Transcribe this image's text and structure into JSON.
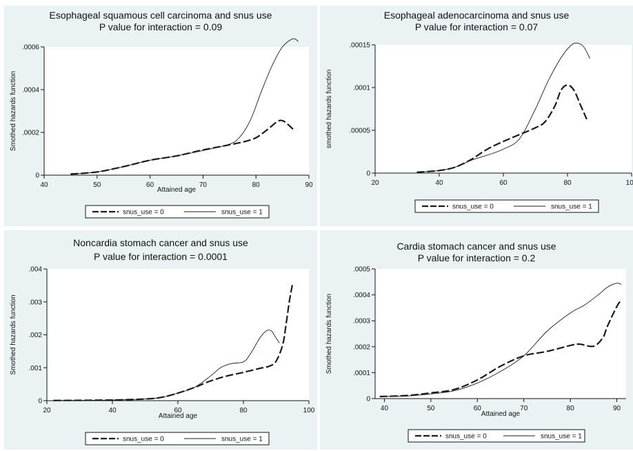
{
  "chart_data": [
    {
      "type": "line",
      "title": "Esophageal squamous cell carcinoma and snus use",
      "subtitle": "P value for interaction = 0.09",
      "xlabel": "Attained age",
      "ylabel": "Smothed hazards function",
      "xlim": [
        40,
        90
      ],
      "ylim": [
        0,
        0.0006
      ],
      "xticks": [
        40,
        50,
        60,
        70,
        80,
        90
      ],
      "xtick_labels": [
        "40",
        "50",
        "60",
        "70",
        "80",
        "90"
      ],
      "yticks": [
        0,
        0.0002,
        0.0004,
        0.0006
      ],
      "ytick_labels": [
        "0",
        ".0002",
        ".0004",
        ".0006"
      ],
      "legend_position": "bottom",
      "series": [
        {
          "name": "snus_use = 0",
          "style": "dashed",
          "x": [
            45,
            50,
            55,
            60,
            65,
            70,
            75,
            78,
            80,
            82,
            84,
            85,
            86,
            87
          ],
          "y": [
            5e-06,
            1.5e-05,
            4e-05,
            7e-05,
            9e-05,
            0.000118,
            0.000142,
            0.000158,
            0.000175,
            0.00021,
            0.00025,
            0.000255,
            0.000238,
            0.000215
          ]
        },
        {
          "name": "snus_use = 1",
          "style": "solid",
          "x": [
            45,
            50,
            55,
            60,
            65,
            70,
            75,
            77,
            79,
            81,
            83,
            85,
            87,
            88
          ],
          "y": [
            5e-06,
            1.5e-05,
            4e-05,
            7e-05,
            9e-05,
            0.000115,
            0.000145,
            0.00018,
            0.00026,
            0.00039,
            0.00051,
            0.0006,
            0.000638,
            0.000625
          ]
        }
      ]
    },
    {
      "type": "line",
      "title": "Esophageal adenocarcinoma and snus use",
      "subtitle": "P value for interaction = 0.07",
      "xlabel": "",
      "ylabel": "smothed hazards function",
      "xlim": [
        20,
        100
      ],
      "ylim": [
        0,
        0.00015
      ],
      "xticks": [
        20,
        40,
        60,
        80,
        100
      ],
      "xtick_labels": [
        "20",
        "40",
        "60",
        "80",
        "100"
      ],
      "yticks": [
        0,
        5e-05,
        0.0001,
        0.00015
      ],
      "ytick_labels": [
        "0",
        ".00005",
        ".0001",
        ".00015"
      ],
      "legend_position": "bottom",
      "series": [
        {
          "name": "snus_use = 0",
          "style": "dashed",
          "x": [
            33,
            40,
            45,
            50,
            55,
            60,
            65,
            70,
            73,
            76,
            78,
            80,
            82,
            84,
            86
          ],
          "y": [
            1e-06,
            3e-06,
            7e-06,
            1.6e-05,
            2.8e-05,
            3.7e-05,
            4.5e-05,
            5.3e-05,
            6e-05,
            7.8e-05,
            9.7e-05,
            0.000103,
            9.7e-05,
            8e-05,
            6.3e-05
          ]
        },
        {
          "name": "snus_use = 1",
          "style": "solid",
          "x": [
            33,
            40,
            45,
            50,
            55,
            60,
            65,
            70,
            74,
            78,
            81,
            83,
            85,
            87
          ],
          "y": [
            1e-06,
            3e-06,
            7e-06,
            1.5e-05,
            2.1e-05,
            2.8e-05,
            4e-05,
            7.5e-05,
            0.000108,
            0.000135,
            0.000149,
            0.000152,
            0.000148,
            0.000134
          ]
        }
      ]
    },
    {
      "type": "line",
      "title": "Noncardia stomach cancer and snus use",
      "subtitle": "P value for interaction = 0.0001",
      "xlabel": "Attained age",
      "ylabel": "Smothed hazards function",
      "xlim": [
        20,
        100
      ],
      "ylim": [
        0,
        0.004
      ],
      "xticks": [
        20,
        40,
        60,
        80,
        100
      ],
      "xtick_labels": [
        "20",
        "40",
        "60",
        "80",
        "100"
      ],
      "yticks": [
        0,
        0.001,
        0.002,
        0.003,
        0.004
      ],
      "ytick_labels": [
        "0",
        ".001",
        ".002",
        ".003",
        ".004"
      ],
      "legend_position": "bottom",
      "series": [
        {
          "name": "snus_use = 0",
          "style": "dashed",
          "x": [
            22,
            30,
            40,
            50,
            55,
            60,
            65,
            70,
            75,
            80,
            85,
            88,
            90,
            92,
            93,
            94,
            95
          ],
          "y": [
            5e-06,
            1e-05,
            2e-05,
            5e-05,
            0.0001,
            0.00023,
            0.0004,
            0.0006,
            0.00075,
            0.00086,
            0.00098,
            0.00105,
            0.0012,
            0.0017,
            0.0023,
            0.003,
            0.00355
          ]
        },
        {
          "name": "snus_use = 1",
          "style": "solid",
          "x": [
            22,
            30,
            40,
            50,
            55,
            60,
            65,
            70,
            73,
            76,
            80,
            82,
            85,
            87,
            88.5,
            90,
            91
          ],
          "y": [
            5e-06,
            1e-05,
            2e-05,
            5e-05,
            0.0001,
            0.00023,
            0.0004,
            0.00075,
            0.001,
            0.00112,
            0.00118,
            0.0014,
            0.0019,
            0.00212,
            0.00212,
            0.0019,
            0.00175
          ]
        }
      ]
    },
    {
      "type": "line",
      "title": "Cardia stomach cancer and snus use",
      "subtitle": "P value for interaction = 0.2",
      "xlabel": "Attained age",
      "ylabel": "Smothed hazards function",
      "xlim": [
        38,
        92
      ],
      "ylim": [
        0,
        0.0005
      ],
      "xticks": [
        40,
        50,
        60,
        70,
        80,
        90
      ],
      "xtick_labels": [
        "40",
        "50",
        "60",
        "70",
        "80",
        "90"
      ],
      "yticks": [
        0,
        0.0001,
        0.0002,
        0.0003,
        0.0004,
        0.0005
      ],
      "ytick_labels": [
        "0",
        ".0001",
        ".0002",
        ".0003",
        ".0004",
        ".0005"
      ],
      "legend_position": "bottom",
      "series": [
        {
          "name": "snus_use = 0",
          "style": "dashed",
          "x": [
            39,
            45,
            50,
            55,
            60,
            65,
            70,
            75,
            80,
            82,
            85,
            87,
            88,
            90,
            91
          ],
          "y": [
            8e-06,
            1.2e-05,
            2.2e-05,
            3.5e-05,
            7.2e-05,
            0.000125,
            0.000165,
            0.000182,
            0.000205,
            0.00021,
            0.000202,
            0.000235,
            0.00028,
            0.000355,
            0.000382
          ]
        },
        {
          "name": "snus_use = 1",
          "style": "solid",
          "x": [
            39,
            45,
            50,
            55,
            60,
            65,
            70,
            75,
            80,
            83,
            86,
            88,
            90,
            91
          ],
          "y": [
            8e-06,
            1e-05,
            1.8e-05,
            3e-05,
            6e-05,
            0.000105,
            0.000165,
            0.00026,
            0.00033,
            0.00036,
            0.0004,
            0.00043,
            0.000445,
            0.00044
          ]
        }
      ]
    }
  ]
}
